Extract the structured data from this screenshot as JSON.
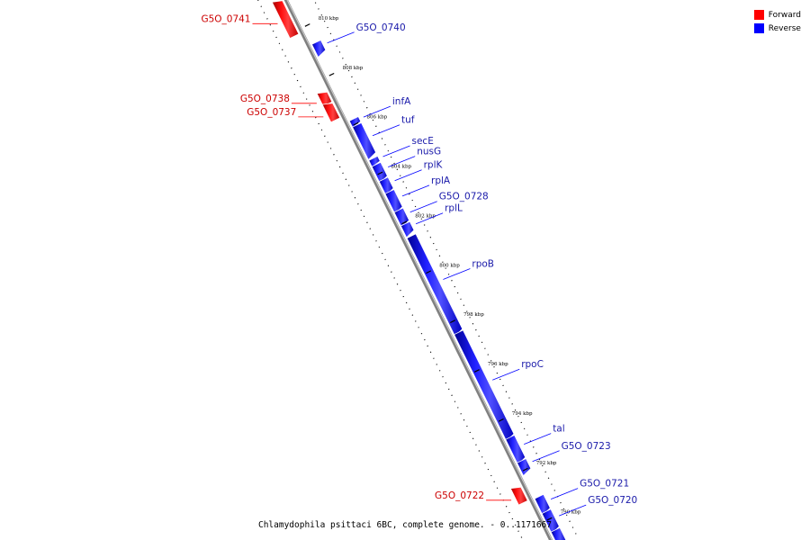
{
  "colors": {
    "forward": "#ff0000",
    "reverse": "#0000ff",
    "backbone": "#808080",
    "label_forward": "#cc0000",
    "label_reverse": "#1a1aaa"
  },
  "legend": [
    {
      "name": "Forward",
      "color": "#ff0000"
    },
    {
      "name": "Reverse",
      "color": "#0000ff"
    }
  ],
  "caption": "Chlamydophila psittaci 6BC, complete genome. - 0..1171667",
  "ticks": [
    {
      "label": "810 kbp",
      "kbp": 810
    },
    {
      "label": "808 kbp",
      "kbp": 808
    },
    {
      "label": "806 kbp",
      "kbp": 806
    },
    {
      "label": "804 kbp",
      "kbp": 804
    },
    {
      "label": "802 kbp",
      "kbp": 802
    },
    {
      "label": "800 kbp",
      "kbp": 800
    },
    {
      "label": "798 kbp",
      "kbp": 798
    },
    {
      "label": "796 kbp",
      "kbp": 796
    },
    {
      "label": "794 kbp",
      "kbp": 794
    },
    {
      "label": "792 kbp",
      "kbp": 792
    },
    {
      "label": "790 kbp",
      "kbp": 790
    }
  ],
  "genes": [
    {
      "name": "G5O_0741",
      "strand": "forward",
      "start_kbp": 811.2,
      "end_kbp": 809.85
    },
    {
      "name": "G5O_0740",
      "strand": "reverse",
      "start_kbp": 809.3,
      "end_kbp": 808.9
    },
    {
      "name": "G5O_0738",
      "strand": "forward",
      "start_kbp": 807.5,
      "end_kbp": 807.1
    },
    {
      "name": "G5O_0737",
      "strand": "forward",
      "start_kbp": 807.05,
      "end_kbp": 806.45
    },
    {
      "name": "infA",
      "strand": "reverse",
      "start_kbp": 806.2,
      "end_kbp": 806.0
    },
    {
      "name": "tuf",
      "strand": "reverse",
      "start_kbp": 805.95,
      "end_kbp": 804.75
    },
    {
      "name": "secE",
      "strand": "reverse",
      "start_kbp": 804.6,
      "end_kbp": 804.4
    },
    {
      "name": "nusG",
      "strand": "reverse",
      "start_kbp": 804.35,
      "end_kbp": 803.8
    },
    {
      "name": "rplK",
      "strand": "reverse",
      "start_kbp": 803.75,
      "end_kbp": 803.3
    },
    {
      "name": "rplA",
      "strand": "reverse",
      "start_kbp": 803.25,
      "end_kbp": 802.55
    },
    {
      "name": "G5O_0728",
      "strand": "reverse",
      "start_kbp": 802.5,
      "end_kbp": 802.0
    },
    {
      "name": "rplL",
      "strand": "reverse",
      "start_kbp": 801.95,
      "end_kbp": 801.6
    },
    {
      "name": "rpoB",
      "strand": "reverse",
      "start_kbp": 801.45,
      "end_kbp": 797.6
    },
    {
      "name": "rpoC",
      "strand": "reverse",
      "start_kbp": 797.55,
      "end_kbp": 793.35
    },
    {
      "name": "tal",
      "strand": "reverse",
      "start_kbp": 793.3,
      "end_kbp": 792.4
    },
    {
      "name": "G5O_0723",
      "strand": "reverse",
      "start_kbp": 792.35,
      "end_kbp": 791.95
    },
    {
      "name": "G5O_0722",
      "strand": "forward",
      "start_kbp": 791.5,
      "end_kbp": 790.95
    },
    {
      "name": "G5O_0721",
      "strand": "reverse",
      "start_kbp": 790.9,
      "end_kbp": 790.35
    },
    {
      "name": "G5O_0720",
      "strand": "reverse",
      "start_kbp": 790.3,
      "end_kbp": 789.6
    },
    {
      "name": "",
      "strand": "reverse",
      "start_kbp": 789.55,
      "end_kbp": 789.0
    }
  ]
}
